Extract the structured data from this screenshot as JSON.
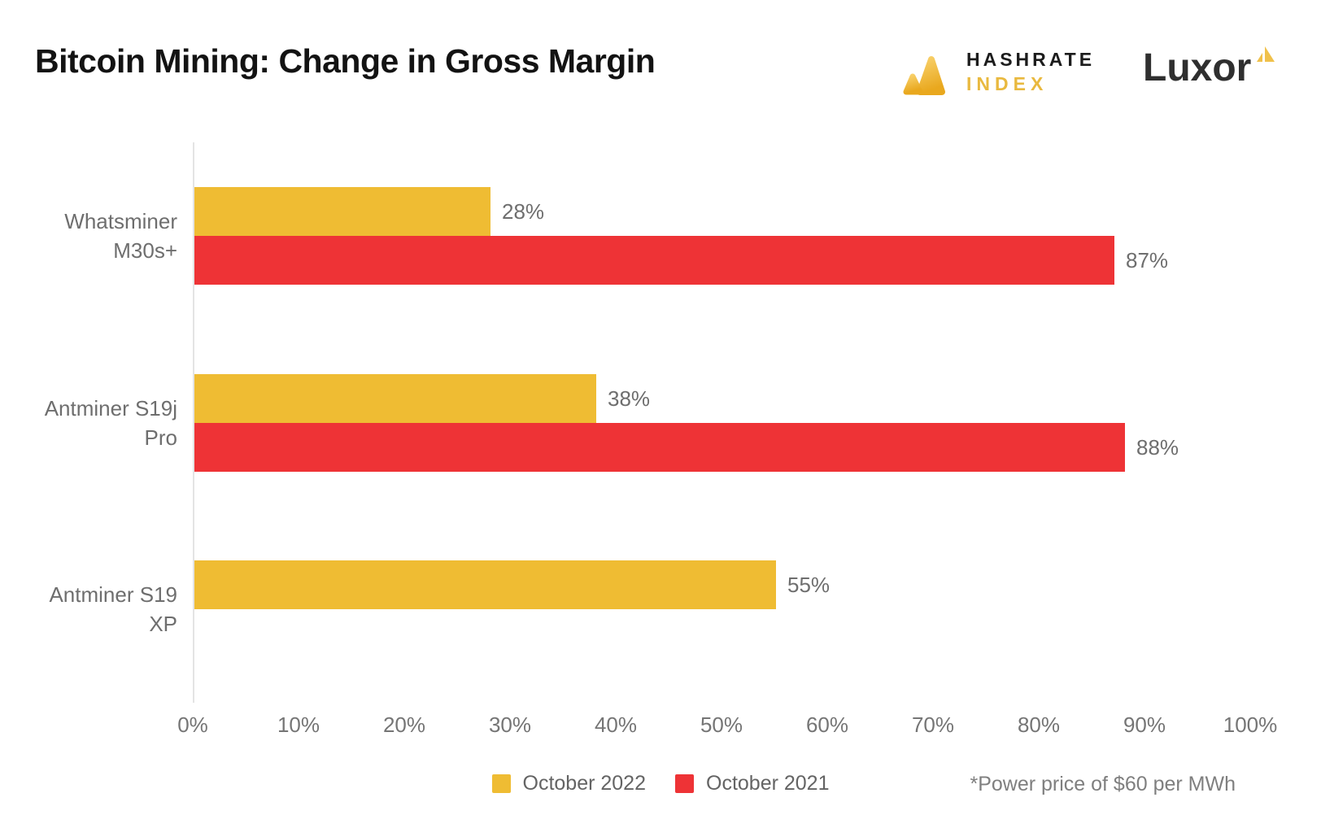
{
  "header": {
    "title": "Bitcoin Mining: Change in Gross Margin",
    "hashrate_logo": {
      "line1": "HASHRATE",
      "line2": "INDEX"
    },
    "luxor_logo": {
      "text": "Luxor"
    }
  },
  "colors": {
    "gold": "#EFBC33",
    "red": "#EE3336",
    "axis_line": "#e4e4e4",
    "text_gray": "#6e6e6e"
  },
  "chart_data": {
    "type": "bar",
    "orientation": "horizontal",
    "title": "Bitcoin Mining: Change in Gross Margin",
    "categories": [
      "Whatsminer M30s+",
      "Antminer S19j Pro",
      "Antminer S19 XP"
    ],
    "category_lines": [
      [
        "Whatsminer",
        "M30s+"
      ],
      [
        "Antminer S19j",
        "Pro"
      ],
      [
        "Antminer S19",
        "XP"
      ]
    ],
    "series": [
      {
        "name": "October 2022",
        "color": "#EFBC33",
        "values": [
          28,
          38,
          55
        ]
      },
      {
        "name": "October 2021",
        "color": "#EE3336",
        "values": [
          87,
          88,
          null
        ]
      }
    ],
    "value_suffix": "%",
    "x_ticks": [
      "0%",
      "10%",
      "20%",
      "30%",
      "40%",
      "50%",
      "60%",
      "70%",
      "80%",
      "90%",
      "100%"
    ],
    "xlim": [
      0,
      100
    ],
    "grid": false,
    "legend_position": "bottom"
  },
  "footnote": "*Power price of $60 per MWh"
}
